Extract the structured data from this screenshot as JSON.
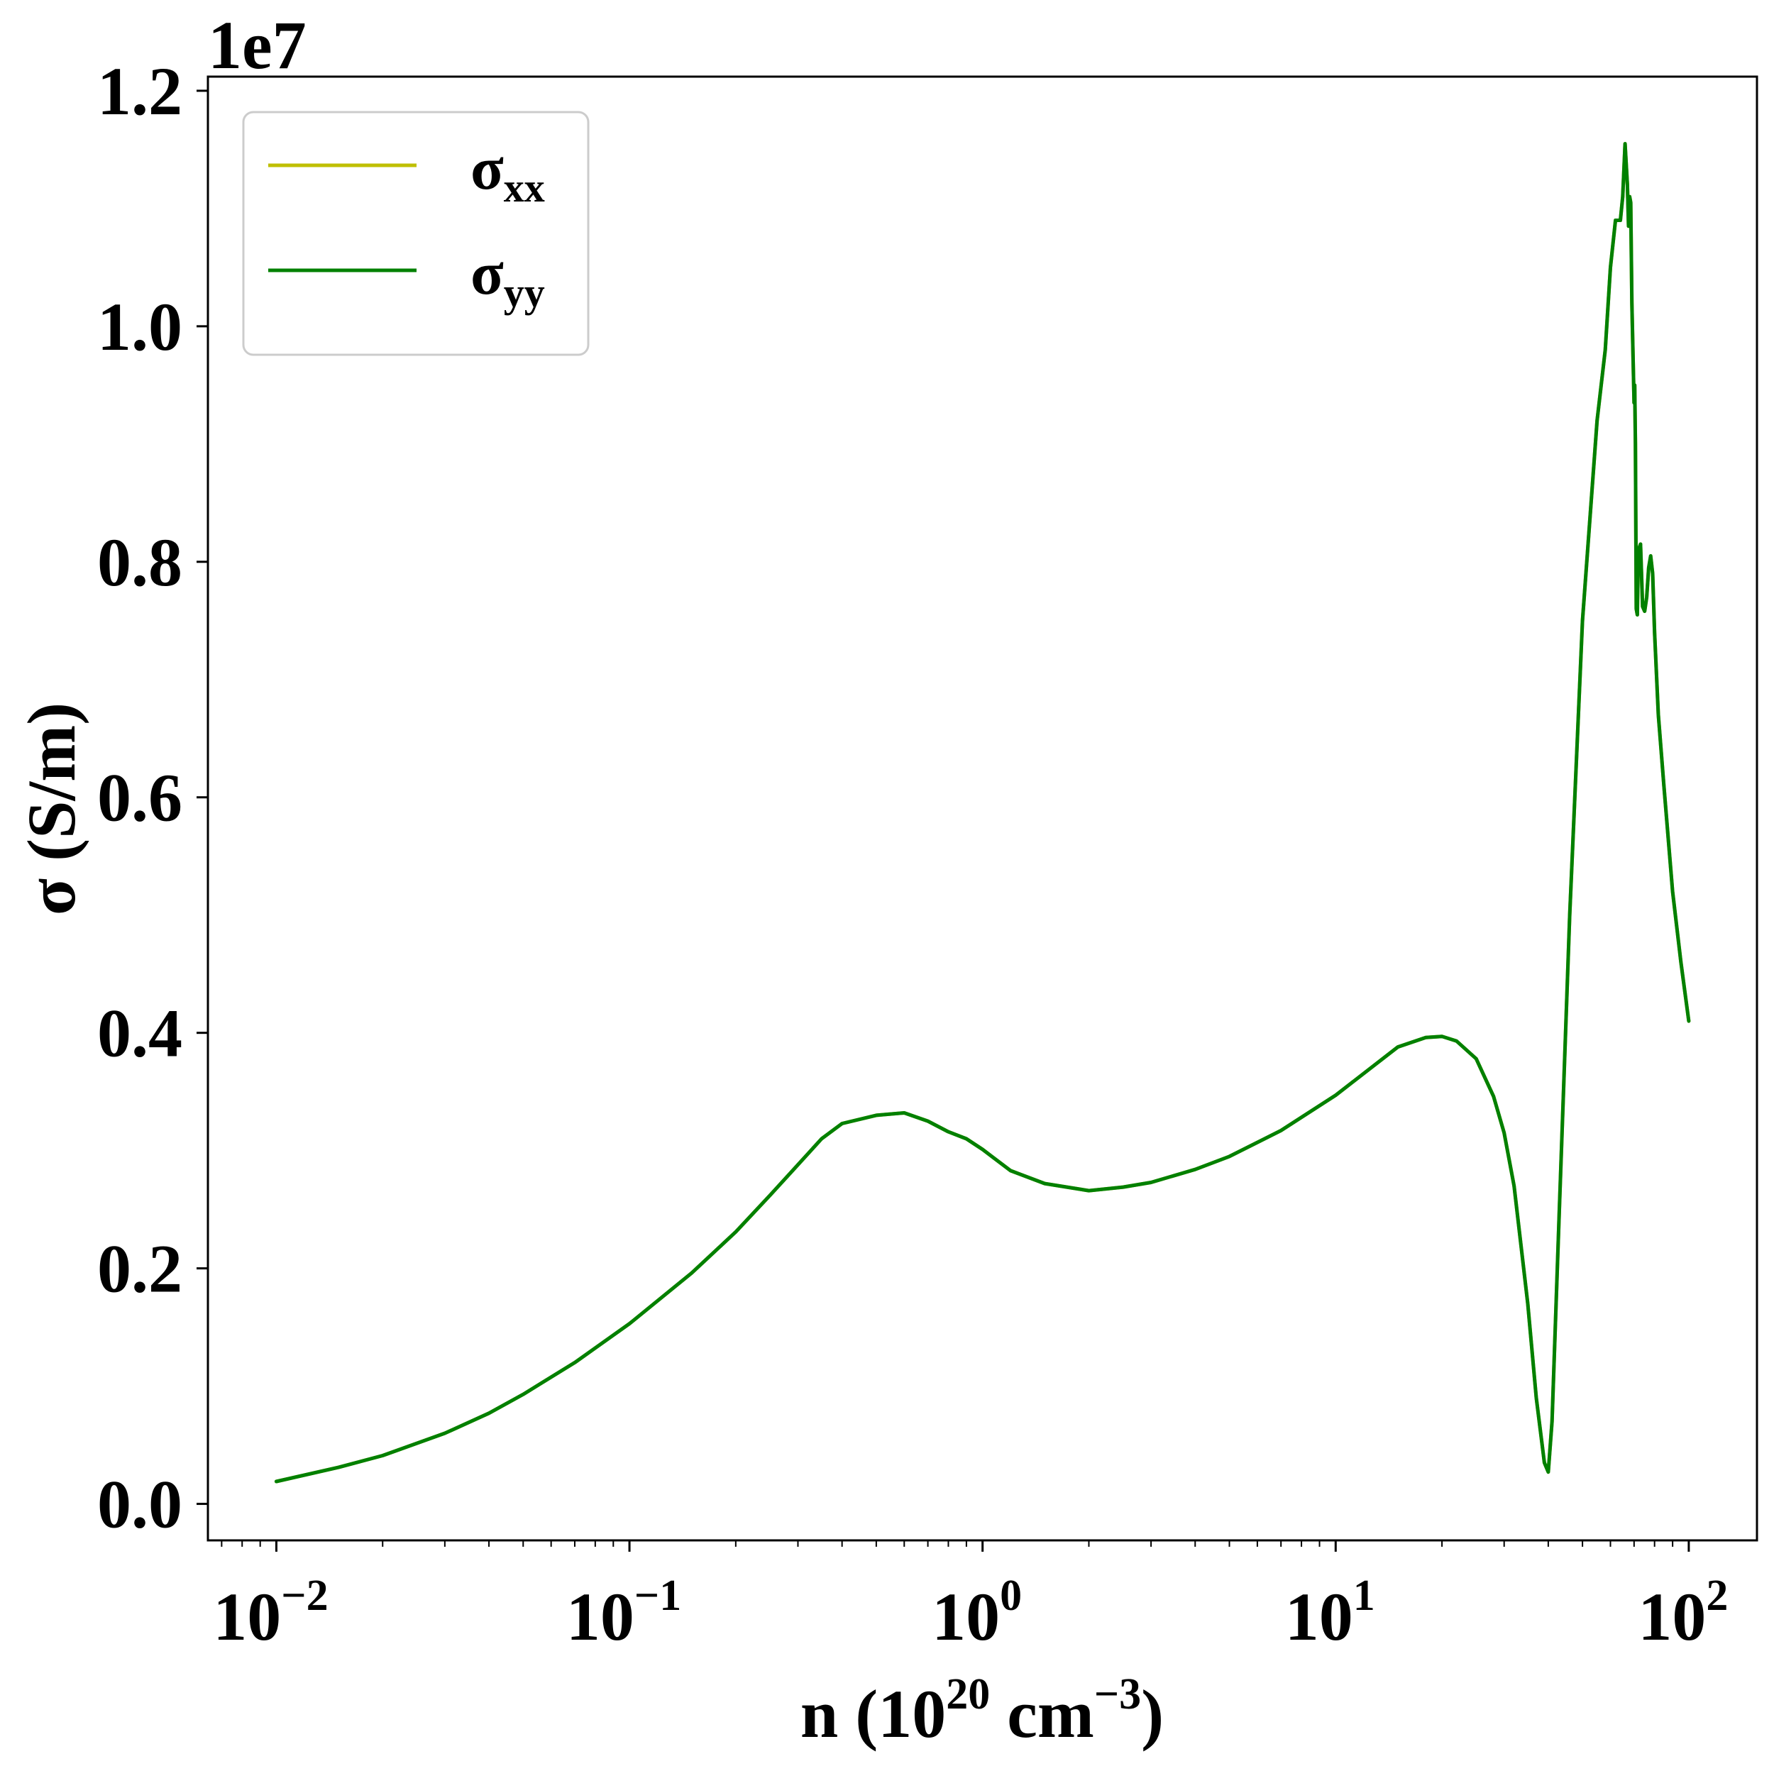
{
  "chart_data": {
    "type": "line",
    "xscale": "log",
    "xlim": [
      0.0064,
      156
    ],
    "ylim": [
      -310000,
      12120000
    ],
    "offset_text": "1e7",
    "xlabel": {
      "prefix": "n (10",
      "exp1": "20",
      "mid": " cm",
      "exp2": "−3",
      "suffix": ")"
    },
    "ylabel": "σ (S/m)",
    "x_ticks": [
      {
        "value": 0.01,
        "base": "10",
        "exp": "−2"
      },
      {
        "value": 0.1,
        "base": "10",
        "exp": "−1"
      },
      {
        "value": 1,
        "base": "10",
        "exp": "0"
      },
      {
        "value": 10,
        "base": "10",
        "exp": "1"
      },
      {
        "value": 100,
        "base": "10",
        "exp": "2"
      }
    ],
    "y_ticks": [
      {
        "value": 0,
        "label": "0.0"
      },
      {
        "value": 2000000,
        "label": "0.2"
      },
      {
        "value": 4000000,
        "label": "0.4"
      },
      {
        "value": 6000000,
        "label": "0.6"
      },
      {
        "value": 8000000,
        "label": "0.8"
      },
      {
        "value": 10000000,
        "label": "1.0"
      },
      {
        "value": 12000000,
        "label": "1.2"
      }
    ],
    "legend": {
      "position": "upper-left",
      "entries": [
        {
          "symbol": "σ",
          "sub": "xx",
          "color": "#bfbf00"
        },
        {
          "symbol": "σ",
          "sub": "yy",
          "color": "#008000"
        }
      ]
    },
    "grid": false,
    "series": [
      {
        "name": "σxx",
        "color": "#bfbf00",
        "x": [
          0.01,
          0.015,
          0.02,
          0.03,
          0.04,
          0.05,
          0.07,
          0.1,
          0.15,
          0.2,
          0.25,
          0.3,
          0.35,
          0.4,
          0.5,
          0.6,
          0.7,
          0.8,
          0.9,
          1.0,
          1.2,
          1.5,
          2.0,
          2.5,
          3.0,
          4.0,
          5.0,
          7.0,
          10,
          15,
          18,
          20,
          22,
          25,
          28,
          30,
          32,
          35,
          37,
          39,
          40,
          41,
          43,
          46,
          50,
          55,
          58,
          60,
          62,
          64,
          65,
          66,
          67,
          67.5,
          68,
          68.5,
          69,
          70,
          70.3,
          70.6,
          71,
          71.5,
          72,
          73,
          74,
          75,
          76,
          77,
          78,
          79,
          80,
          82,
          85,
          90,
          95,
          100
        ],
        "values": [
          190000,
          310000,
          410000,
          600000,
          770000,
          930000,
          1200000,
          1530000,
          1960000,
          2310000,
          2620000,
          2880000,
          3100000,
          3230000,
          3300000,
          3320000,
          3250000,
          3160000,
          3100000,
          3010000,
          2830000,
          2720000,
          2660000,
          2690000,
          2730000,
          2840000,
          2950000,
          3170000,
          3470000,
          3880000,
          3960000,
          3970000,
          3930000,
          3780000,
          3460000,
          3150000,
          2700000,
          1700000,
          900000,
          350000,
          270000,
          700000,
          2500000,
          5000000,
          7500000,
          9200000,
          9800000,
          10500000,
          10900000,
          10900000,
          11100000,
          11550000,
          11200000,
          10850000,
          11100000,
          11050000,
          10200000,
          9350000,
          9500000,
          9000000,
          7600000,
          7550000,
          8100000,
          8150000,
          7620000,
          7580000,
          7700000,
          7950000,
          8050000,
          7900000,
          7400000,
          6700000,
          6100000,
          5200000,
          4600000,
          4100000
        ]
      },
      {
        "name": "σyy",
        "color": "#008000",
        "x": [
          0.01,
          0.015,
          0.02,
          0.03,
          0.04,
          0.05,
          0.07,
          0.1,
          0.15,
          0.2,
          0.25,
          0.3,
          0.35,
          0.4,
          0.5,
          0.6,
          0.7,
          0.8,
          0.9,
          1.0,
          1.2,
          1.5,
          2.0,
          2.5,
          3.0,
          4.0,
          5.0,
          7.0,
          10,
          15,
          18,
          20,
          22,
          25,
          28,
          30,
          32,
          35,
          37,
          39,
          40,
          41,
          43,
          46,
          50,
          55,
          58,
          60,
          62,
          64,
          65,
          66,
          67,
          67.5,
          68,
          68.5,
          69,
          70,
          70.3,
          70.6,
          71,
          71.5,
          72,
          73,
          74,
          75,
          76,
          77,
          78,
          79,
          80,
          82,
          85,
          90,
          95,
          100
        ],
        "values": [
          190000,
          310000,
          410000,
          600000,
          770000,
          930000,
          1200000,
          1530000,
          1960000,
          2310000,
          2620000,
          2880000,
          3100000,
          3230000,
          3300000,
          3320000,
          3250000,
          3160000,
          3100000,
          3010000,
          2830000,
          2720000,
          2660000,
          2690000,
          2730000,
          2840000,
          2950000,
          3170000,
          3470000,
          3880000,
          3960000,
          3970000,
          3930000,
          3780000,
          3460000,
          3150000,
          2700000,
          1700000,
          900000,
          350000,
          270000,
          700000,
          2500000,
          5000000,
          7500000,
          9200000,
          9800000,
          10500000,
          10900000,
          10900000,
          11100000,
          11550000,
          11200000,
          10850000,
          11100000,
          11050000,
          10200000,
          9350000,
          9500000,
          9000000,
          7600000,
          7550000,
          8100000,
          8150000,
          7620000,
          7580000,
          7700000,
          7950000,
          8050000,
          7900000,
          7400000,
          6700000,
          6100000,
          5200000,
          4600000,
          4100000
        ]
      }
    ]
  }
}
